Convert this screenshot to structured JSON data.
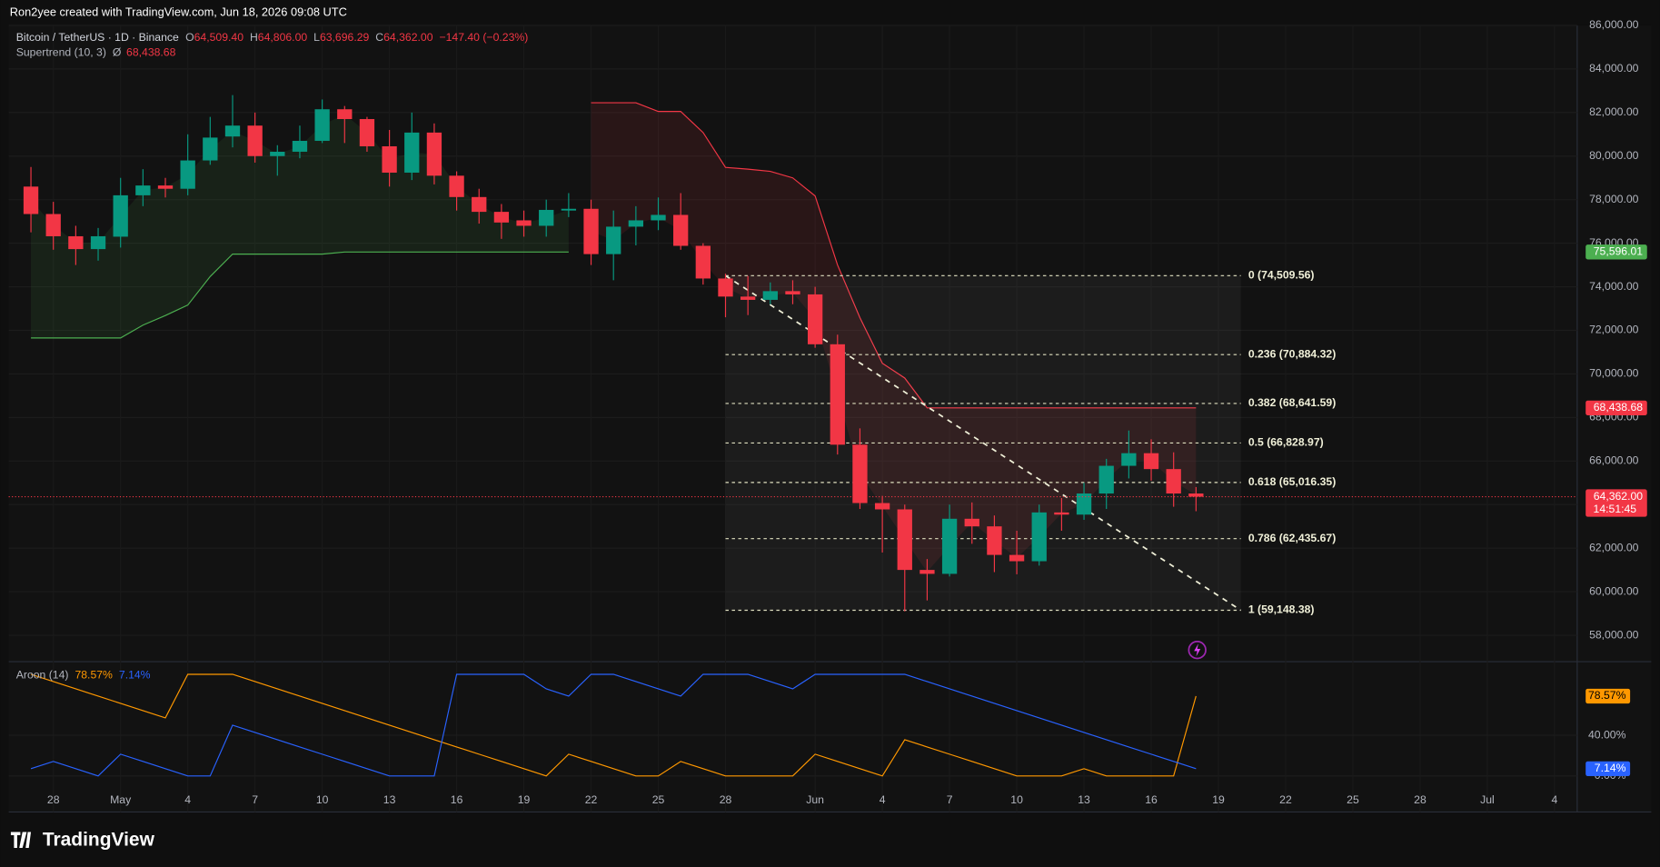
{
  "header": {
    "credit": "Ron2yee created with TradingView.com, Jun 18, 2026 09:08 UTC",
    "brand": "TradingView"
  },
  "chart_data": [
    {
      "type": "candlestick",
      "legend": {
        "symbol": "Bitcoin / TetherUS · 1D · Binance",
        "ohlc": [
          {
            "prefix": "O",
            "label": "64,509.40"
          },
          {
            "prefix": "H",
            "label": "64,806.00"
          },
          {
            "prefix": "L",
            "label": "63,696.29"
          },
          {
            "prefix": "C",
            "label": "64,362.00"
          }
        ],
        "change": "−147.40 (−0.23%)"
      },
      "up_color": "#089981",
      "down_color": "#f23645",
      "open": [
        78600,
        77340,
        76320,
        75730,
        76300,
        78200,
        78650,
        78500,
        79800,
        80900,
        81400,
        80000,
        80200,
        80700,
        82150,
        81700,
        80450,
        79240,
        81080,
        79100,
        78120,
        77440,
        77050,
        76800,
        77500,
        77580,
        75500,
        76760,
        77050,
        77300,
        75880,
        74380,
        73550,
        73400,
        73800,
        73650,
        71360,
        66750,
        64070,
        63780,
        61000,
        60820,
        63350,
        63000,
        61690,
        61400,
        63640,
        63540,
        64510,
        65780,
        66360,
        65630,
        64509.4
      ],
      "high": [
        79500,
        77900,
        76800,
        76700,
        79000,
        79400,
        79000,
        81000,
        81800,
        82800,
        82000,
        80500,
        81400,
        82600,
        82300,
        81800,
        81200,
        82000,
        81500,
        79300,
        78500,
        77800,
        77500,
        78000,
        78300,
        78000,
        77500,
        77700,
        78100,
        78300,
        76000,
        74600,
        74500,
        74200,
        74300,
        74000,
        71800,
        67500,
        64400,
        64000,
        61500,
        64000,
        64100,
        63500,
        62800,
        64000,
        64300,
        65000,
        66100,
        67400,
        67000,
        66400,
        64806
      ],
      "low": [
        76500,
        75700,
        75000,
        75200,
        75800,
        77700,
        78100,
        78200,
        79600,
        80400,
        79700,
        79100,
        79900,
        80600,
        80600,
        80200,
        78600,
        78900,
        78700,
        77500,
        76900,
        76200,
        76300,
        76300,
        77200,
        75000,
        74300,
        75900,
        76600,
        75700,
        74100,
        72600,
        72700,
        73200,
        73200,
        71200,
        66300,
        63800,
        61800,
        59100,
        59600,
        60700,
        62200,
        60900,
        60800,
        61200,
        62800,
        63300,
        63800,
        65200,
        65100,
        63900,
        63696.29
      ],
      "close": [
        77340,
        76320,
        75730,
        76320,
        78200,
        78650,
        78500,
        79800,
        80850,
        81400,
        80000,
        80200,
        80700,
        82150,
        81700,
        80450,
        79240,
        81080,
        79100,
        78120,
        77440,
        76950,
        76800,
        77530,
        77580,
        75500,
        76760,
        77050,
        77300,
        75880,
        74380,
        73550,
        73400,
        73800,
        73650,
        71360,
        66750,
        64070,
        63780,
        61000,
        60820,
        63350,
        63000,
        61690,
        61400,
        63640,
        63540,
        64510,
        65780,
        66360,
        65630,
        64510,
        64362
      ],
      "supertrend": {
        "name": "Supertrend (10, 3)",
        "symbol": "Ø",
        "last_label": "68,438.68",
        "series": [
          {
            "color": "#4caf50",
            "values": [
              71650,
              71650,
              71650,
              71650,
              71650,
              72240,
              72680,
              73160,
              74470,
              75500,
              75500,
              75500,
              75500,
              75500,
              75596.01,
              75596.01,
              75596.01,
              75596.01,
              75596.01,
              75596.01,
              75596.01,
              75596.01,
              75596.01,
              75596.01,
              75596.01,
              null,
              null,
              null,
              null,
              null,
              null,
              null,
              null,
              null,
              null,
              null,
              null,
              null,
              null,
              null,
              null,
              null,
              null,
              null,
              null,
              null,
              null,
              null,
              null,
              null,
              null,
              null,
              null
            ]
          },
          {
            "color": "#f23645",
            "values": [
              null,
              null,
              null,
              null,
              null,
              null,
              null,
              null,
              null,
              null,
              null,
              null,
              null,
              null,
              null,
              null,
              null,
              null,
              null,
              null,
              null,
              null,
              null,
              null,
              null,
              82450,
              82450,
              82450,
              82050,
              82050,
              81080,
              79480,
              79400,
              79300,
              79000,
              78170,
              75000,
              72580,
              70490,
              69810,
              68438.68,
              68438.68,
              68438.68,
              68438.68,
              68438.68,
              68438.68,
              68438.68,
              68438.68,
              68438.68,
              68438.68,
              68438.68,
              68438.68,
              68438.68
            ]
          }
        ]
      },
      "fib": {
        "levels": [
          {
            "value": 74509.56,
            "label": "0 (74,509.56)"
          },
          {
            "value": 70884.32,
            "label": "0.236 (70,884.32)"
          },
          {
            "value": 68641.59,
            "label": "0.382 (68,641.59)"
          },
          {
            "value": 66828.97,
            "label": "0.5 (66,828.97)"
          },
          {
            "value": 65016.35,
            "label": "0.618 (65,016.35)"
          },
          {
            "value": 62435.67,
            "label": "0.786 (62,435.67)"
          },
          {
            "value": 59148.38,
            "label": "1 (59,148.38)"
          }
        ]
      },
      "axis_labels": [
        {
          "value": 75596.01,
          "label": "75,596.01",
          "color": "#4caf50"
        },
        {
          "value": 68438.68,
          "label": "68,438.68",
          "color": "#f23645"
        },
        {
          "value": 64362,
          "label": "64,362.00",
          "color": "#f23645",
          "sub": "14:51:45"
        }
      ],
      "ylim": [
        56790,
        86000
      ],
      "yticks": [
        {
          "value": 86000,
          "label": "86,000.00"
        },
        {
          "value": 84000,
          "label": "84,000.00"
        },
        {
          "value": 82000,
          "label": "82,000.00"
        },
        {
          "value": 80000,
          "label": "80,000.00"
        },
        {
          "value": 78000,
          "label": "78,000.00"
        },
        {
          "value": 76000,
          "label": "76,000.00"
        },
        {
          "value": 74000,
          "label": "74,000.00"
        },
        {
          "value": 72000,
          "label": "72,000.00"
        },
        {
          "value": 70000,
          "label": "70,000.00"
        },
        {
          "value": 68000,
          "label": "68,000.00"
        },
        {
          "value": 66000,
          "label": "66,000.00"
        },
        {
          "value": 64000,
          "label": "64,000.00"
        },
        {
          "value": 62000,
          "label": "62,000.00"
        },
        {
          "value": 60000,
          "label": "60,000.00"
        },
        {
          "value": 58000,
          "label": "58,000.00"
        }
      ],
      "xticks": [
        {
          "value": 1,
          "label": "28"
        },
        {
          "value": 4,
          "label": "May"
        },
        {
          "value": 7,
          "label": "4"
        },
        {
          "value": 10,
          "label": "7"
        },
        {
          "value": 13,
          "label": "10"
        },
        {
          "value": 16,
          "label": "13"
        },
        {
          "value": 19,
          "label": "16"
        },
        {
          "value": 22,
          "label": "19"
        },
        {
          "value": 25,
          "label": "22"
        },
        {
          "value": 28,
          "label": "25"
        },
        {
          "value": 31,
          "label": "28"
        },
        {
          "value": 35,
          "label": "Jun"
        },
        {
          "value": 38,
          "label": "4"
        },
        {
          "value": 41,
          "label": "7"
        },
        {
          "value": 44,
          "label": "10"
        },
        {
          "value": 47,
          "label": "13"
        },
        {
          "value": 50,
          "label": "16"
        },
        {
          "value": 53,
          "label": "19"
        },
        {
          "value": 56,
          "label": "22"
        },
        {
          "value": 59,
          "label": "25"
        },
        {
          "value": 62,
          "label": "28"
        },
        {
          "value": 65,
          "label": "Jul"
        },
        {
          "value": 68,
          "label": "4"
        }
      ],
      "grid": true
    },
    {
      "type": "line",
      "title": "Aroon (14)",
      "series": [
        {
          "name": "78.57%",
          "color": "#ff9800",
          "last_label": "78.57%",
          "values": [
            100,
            92.86,
            85.71,
            78.57,
            71.43,
            64.29,
            57.14,
            100,
            100,
            100,
            92.86,
            85.71,
            78.57,
            71.43,
            64.29,
            57.14,
            50,
            42.86,
            35.71,
            28.57,
            21.43,
            14.29,
            7.14,
            0,
            21.43,
            14.29,
            7.14,
            0,
            0,
            14.29,
            7.14,
            0,
            0,
            0,
            0,
            21.43,
            14.29,
            7.14,
            0,
            35.71,
            28.57,
            21.43,
            14.29,
            7.14,
            0,
            0,
            0,
            7.14,
            0,
            0,
            0,
            0,
            78.57
          ]
        },
        {
          "name": "7.14%",
          "color": "#2962ff",
          "last_label": "7.14%",
          "values": [
            7.14,
            14.29,
            7.14,
            0,
            21.43,
            14.29,
            7.14,
            0,
            0,
            50,
            42.86,
            35.71,
            28.57,
            21.43,
            14.29,
            7.14,
            0,
            0,
            0,
            100,
            100,
            100,
            100,
            85.71,
            78.57,
            100,
            100,
            92.86,
            85.71,
            78.57,
            100,
            100,
            100,
            92.86,
            85.71,
            100,
            100,
            100,
            100,
            100,
            92.86,
            85.71,
            78.57,
            71.43,
            64.29,
            57.14,
            50,
            42.86,
            35.71,
            28.57,
            21.43,
            14.29,
            7.14
          ]
        }
      ],
      "ylim": [
        -35.4,
        112.5
      ],
      "yticks": [
        {
          "value": 40,
          "label": "40.00%"
        },
        {
          "value": 0,
          "label": "0.00%"
        }
      ]
    }
  ]
}
